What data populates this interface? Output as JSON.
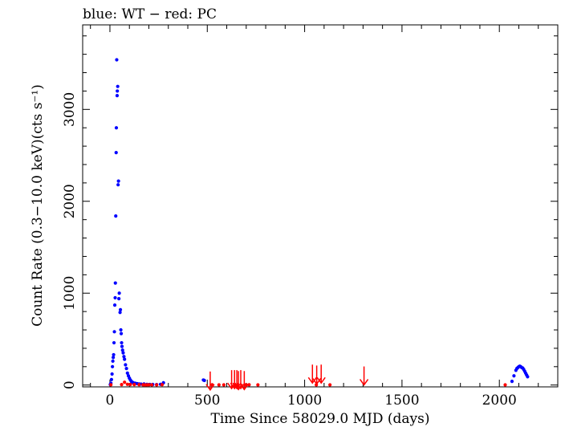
{
  "chart_data": {
    "type": "scatter",
    "title": "blue: WT − red: PC",
    "xlabel": "Time Since 58029.0 MJD (days)",
    "ylabel": "Count Rate (0.3−10.0 keV)(cts s⁻¹)",
    "xlim": [
      -140,
      2300
    ],
    "ylim": [
      -20,
      3920
    ],
    "x_ticks": [
      0,
      500,
      1000,
      1500,
      2000
    ],
    "x_tick_labels": [
      "0",
      "500",
      "1000",
      "1500",
      "2000"
    ],
    "y_ticks": [
      0,
      1000,
      2000,
      3000
    ],
    "y_tick_labels": [
      "0",
      "1000",
      "2000",
      "3000"
    ],
    "grid": false,
    "colors": {
      "wt": "#0000ff",
      "pc": "#ff0000",
      "axes": "#000000"
    },
    "series": [
      {
        "key": "wt",
        "color": "#0000ff",
        "points": [
          [
            2,
            5
          ],
          [
            5,
            20
          ],
          [
            8,
            60
          ],
          [
            11,
            120
          ],
          [
            13,
            200
          ],
          [
            15,
            260
          ],
          [
            17,
            300
          ],
          [
            19,
            330
          ],
          [
            21,
            460
          ],
          [
            23,
            580
          ],
          [
            25,
            870
          ],
          [
            27,
            950
          ],
          [
            28,
            1110
          ],
          [
            30,
            1840
          ],
          [
            32,
            2530
          ],
          [
            33,
            2800
          ],
          [
            35,
            3540
          ],
          [
            37,
            3150
          ],
          [
            38,
            3200
          ],
          [
            40,
            3250
          ],
          [
            42,
            2180
          ],
          [
            44,
            2220
          ],
          [
            46,
            940
          ],
          [
            48,
            1000
          ],
          [
            52,
            790
          ],
          [
            54,
            820
          ],
          [
            56,
            600
          ],
          [
            58,
            560
          ],
          [
            60,
            460
          ],
          [
            62,
            420
          ],
          [
            65,
            380
          ],
          [
            68,
            350
          ],
          [
            72,
            310
          ],
          [
            75,
            280
          ],
          [
            80,
            220
          ],
          [
            85,
            180
          ],
          [
            90,
            130
          ],
          [
            95,
            100
          ],
          [
            100,
            75
          ],
          [
            105,
            55
          ],
          [
            110,
            40
          ],
          [
            115,
            30
          ],
          [
            120,
            25
          ],
          [
            130,
            20
          ],
          [
            140,
            15
          ],
          [
            150,
            12
          ],
          [
            160,
            10
          ],
          [
            175,
            12
          ],
          [
            190,
            8
          ],
          [
            205,
            6
          ],
          [
            220,
            6
          ],
          [
            240,
            5
          ],
          [
            260,
            8
          ],
          [
            275,
            25
          ],
          [
            480,
            55
          ],
          [
            485,
            50
          ],
          [
            2065,
            40
          ],
          [
            2075,
            100
          ],
          [
            2085,
            160
          ],
          [
            2090,
            180
          ],
          [
            2095,
            190
          ],
          [
            2100,
            200
          ],
          [
            2105,
            205
          ],
          [
            2110,
            200
          ],
          [
            2115,
            190
          ],
          [
            2120,
            185
          ],
          [
            2125,
            170
          ],
          [
            2130,
            150
          ],
          [
            2135,
            130
          ],
          [
            2140,
            110
          ],
          [
            2145,
            90
          ]
        ]
      },
      {
        "key": "pc",
        "color": "#ff0000",
        "points": [
          [
            5,
            3
          ],
          [
            60,
            5
          ],
          [
            75,
            30
          ],
          [
            90,
            8
          ],
          [
            105,
            6
          ],
          [
            125,
            5
          ],
          [
            150,
            4
          ],
          [
            170,
            3
          ],
          [
            180,
            2
          ],
          [
            190,
            2
          ],
          [
            200,
            3
          ],
          [
            215,
            2
          ],
          [
            240,
            2
          ],
          [
            268,
            4
          ],
          [
            525,
            3
          ],
          [
            560,
            2
          ],
          [
            585,
            2
          ],
          [
            640,
            3
          ],
          [
            655,
            2
          ],
          [
            700,
            2
          ],
          [
            715,
            3
          ],
          [
            760,
            2
          ],
          [
            1060,
            2
          ],
          [
            1130,
            2
          ],
          [
            2030,
            2
          ]
        ]
      },
      {
        "key": "pc_upper_limits",
        "color": "#ff0000",
        "points": [
          [
            515,
            25
          ],
          [
            625,
            40
          ],
          [
            640,
            40
          ],
          [
            652,
            40
          ],
          [
            660,
            30
          ],
          [
            672,
            40
          ],
          [
            690,
            30
          ],
          [
            1040,
            100
          ],
          [
            1062,
            90
          ],
          [
            1085,
            100
          ],
          [
            1305,
            80
          ]
        ]
      }
    ]
  }
}
